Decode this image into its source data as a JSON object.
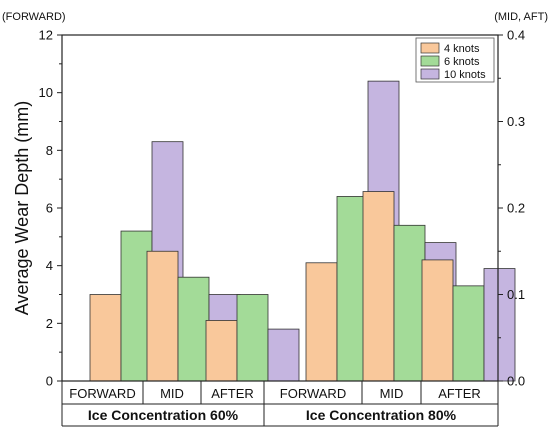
{
  "chart_data": {
    "type": "bar",
    "ylabel": "Average Wear Depth (mm)",
    "left_axis_note": "(FORWARD)",
    "right_axis_note": "(MID, AFT)",
    "ylim_left": [
      0,
      12
    ],
    "ylim_right": [
      0.0,
      0.4
    ],
    "left_ticks": [
      "0",
      "2",
      "4",
      "6",
      "8",
      "10",
      "12"
    ],
    "right_ticks": [
      "0.0",
      "0.1",
      "0.2",
      "0.3",
      "0.4"
    ],
    "groups": [
      "Ice Concentration 60%",
      "Ice Concentration 80%"
    ],
    "categories": [
      "FORWARD",
      "MID",
      "AFTER",
      "FORWARD",
      "MID",
      "AFTER"
    ],
    "axis_for_category": [
      "left",
      "right",
      "right",
      "left",
      "right",
      "right"
    ],
    "series": [
      {
        "name": "4 knots",
        "color": "#F9C89B",
        "values": [
          3.0,
          0.15,
          0.07,
          4.1,
          0.219,
          0.14
        ]
      },
      {
        "name": "6 knots",
        "color": "#A3DB98",
        "values": [
          5.2,
          0.12,
          0.1,
          6.4,
          0.18,
          0.11
        ]
      },
      {
        "name": "10 knots",
        "color": "#C5B5E0",
        "values": [
          8.3,
          0.1,
          0.06,
          10.4,
          0.16,
          0.13
        ]
      }
    ],
    "legend_position": "top-right",
    "grid": false
  }
}
